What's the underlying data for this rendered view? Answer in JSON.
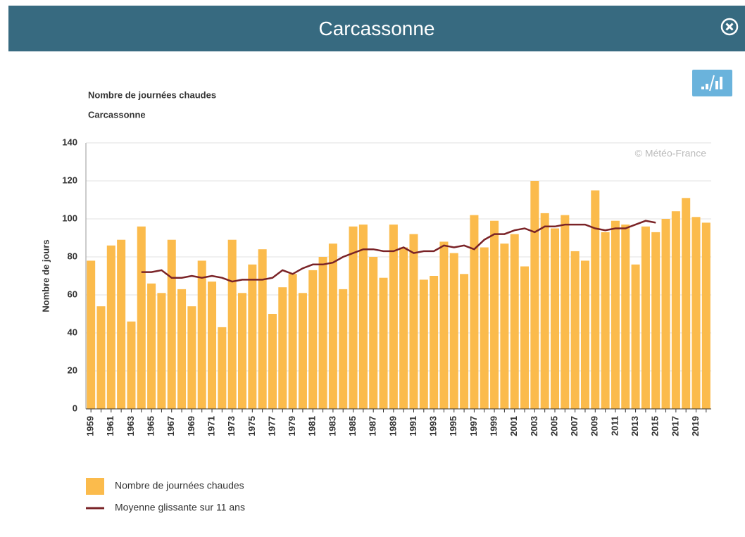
{
  "header": {
    "title": "Carcassonne"
  },
  "chart_data": {
    "type": "bar",
    "title": "Nombre de journées chaudes",
    "subtitle": "Carcassonne",
    "credit": "© Météo-France",
    "y_label": "Nombre de jours",
    "categories": [
      1959,
      null,
      1961,
      null,
      1963,
      null,
      1965,
      null,
      1967,
      null,
      1969,
      null,
      1971,
      null,
      1973,
      null,
      1975,
      null,
      1977,
      null,
      1979,
      null,
      1981,
      null,
      1983,
      null,
      1985,
      null,
      1987,
      null,
      1989,
      null,
      1991,
      null,
      1993,
      null,
      1995,
      null,
      1997,
      null,
      1999,
      null,
      2001,
      null,
      2003,
      null,
      2005,
      null,
      2007,
      null,
      2009,
      null,
      2011,
      null,
      2013,
      null,
      2015,
      null,
      2017,
      null,
      2019,
      null
    ],
    "series": [
      {
        "name": "Nombre de journées chaudes",
        "type": "bar",
        "color": "#fbbb4c",
        "values": [
          78,
          54,
          86,
          89,
          46,
          96,
          66,
          61,
          89,
          63,
          54,
          78,
          67,
          43,
          89,
          61,
          76,
          84,
          50,
          64,
          71,
          61,
          73,
          80,
          87,
          63,
          96,
          97,
          80,
          69,
          97,
          85,
          92,
          68,
          70,
          88,
          82,
          71,
          102,
          85,
          99,
          87,
          92,
          75,
          120,
          103,
          95,
          102,
          83,
          78,
          115,
          93,
          99,
          97,
          76,
          96,
          93,
          100,
          104,
          111,
          101,
          98
        ]
      },
      {
        "name": "Moyenne glissante sur 11 ans",
        "type": "line",
        "color": "#7a2327",
        "values": [
          null,
          null,
          null,
          null,
          null,
          72,
          72,
          73,
          69,
          69,
          70,
          69,
          70,
          69,
          67,
          68,
          68,
          68,
          69,
          73,
          71,
          74,
          76,
          76,
          77,
          80,
          82,
          84,
          84,
          83,
          83,
          85,
          82,
          83,
          83,
          86,
          85,
          86,
          84,
          89,
          92,
          92,
          94,
          95,
          93,
          96,
          96,
          97,
          97,
          97,
          95,
          94,
          95,
          95,
          97,
          99,
          98,
          null,
          null,
          null,
          null,
          null
        ]
      }
    ],
    "ylim": [
      0,
      140
    ],
    "yticks": [
      0,
      20,
      40,
      60,
      80,
      100,
      120,
      140
    ],
    "grid": true
  }
}
